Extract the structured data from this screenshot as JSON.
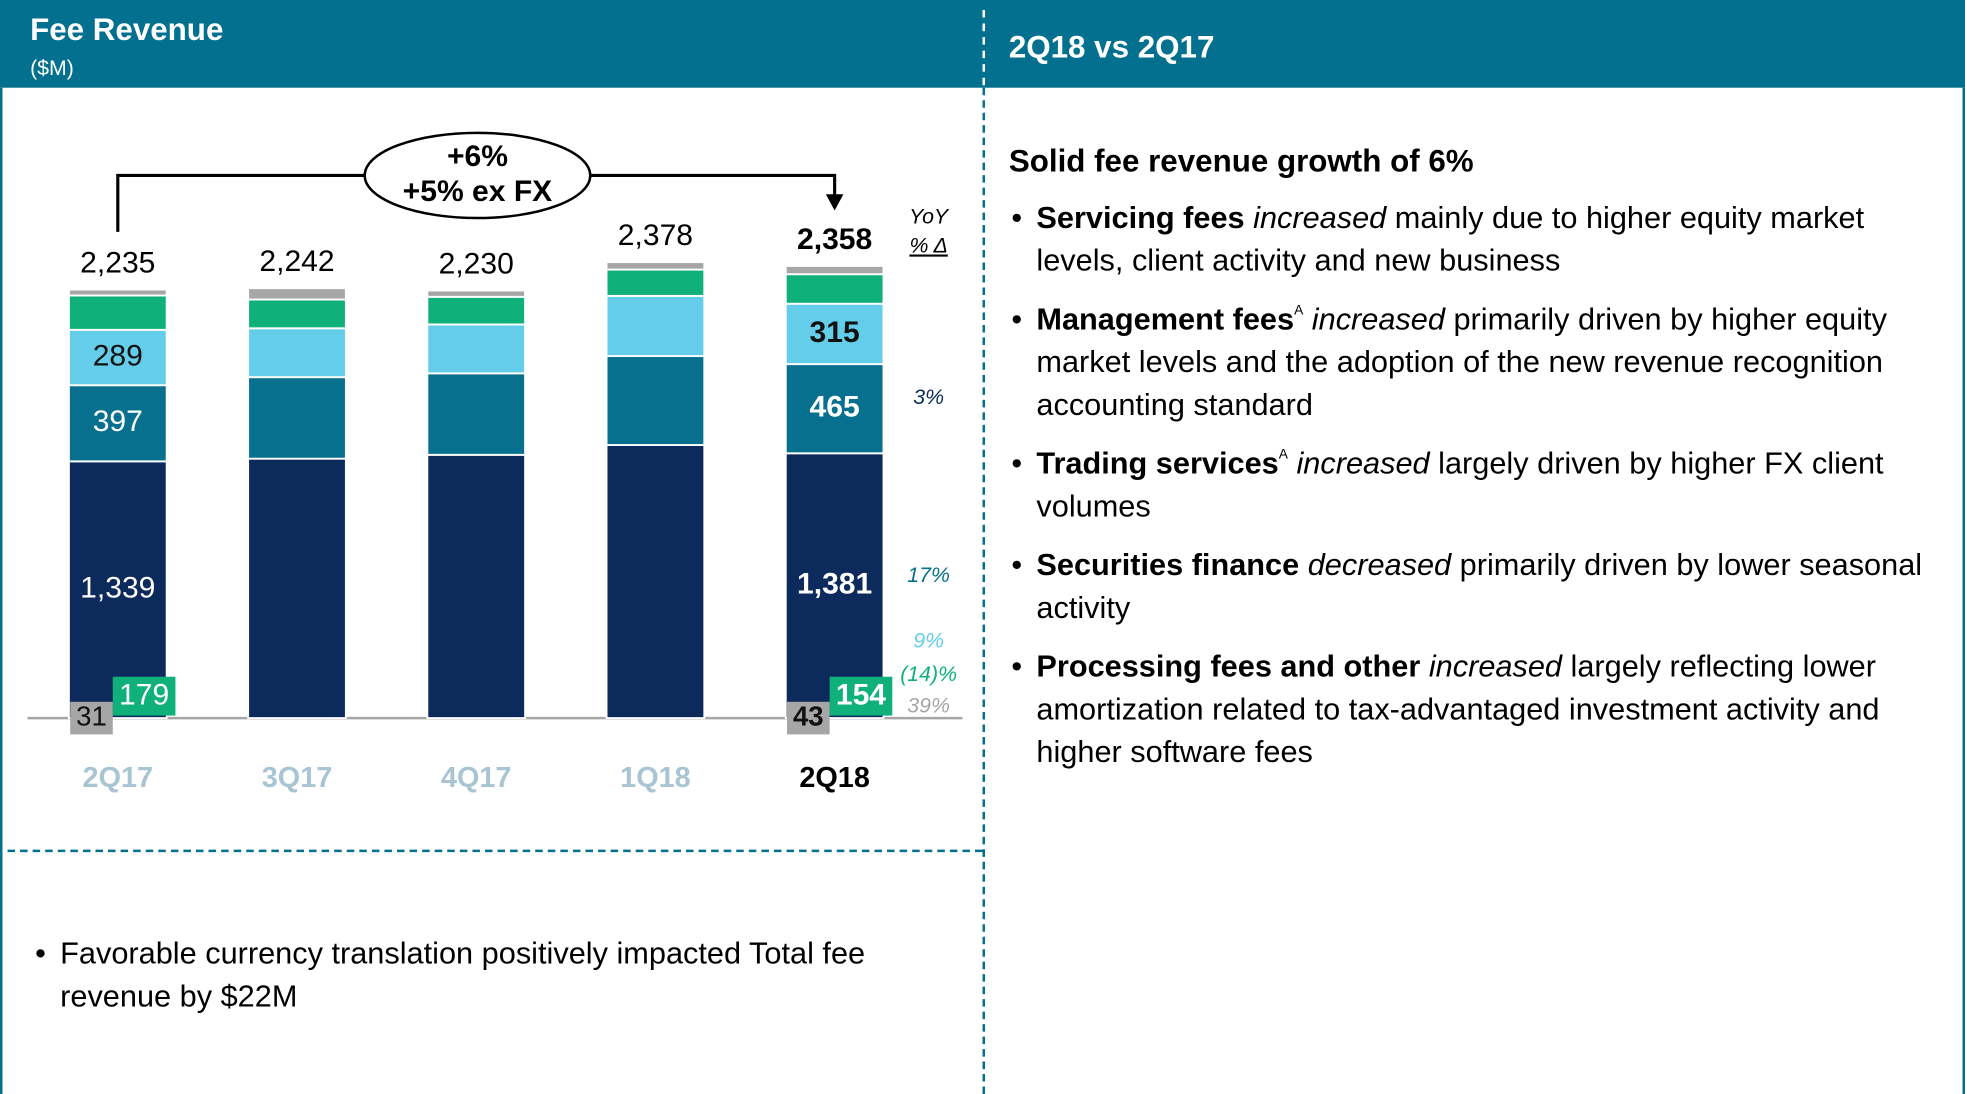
{
  "header": {
    "left_title": "Fee Revenue",
    "left_subtitle": "($M)",
    "right_title": "2Q18 vs 2Q17"
  },
  "chart_data": {
    "type": "bar",
    "stacked": true,
    "categories": [
      "2Q17",
      "3Q17",
      "4Q17",
      "1Q18",
      "2Q18"
    ],
    "series": [
      {
        "color": "#0c2a5b",
        "values": [
          1339,
          1353,
          1373,
          1424,
          1381
        ],
        "value_labels": [
          "1,339",
          null,
          null,
          null,
          "1,381"
        ],
        "yoy": "3%"
      },
      {
        "color": "#08708f",
        "values": [
          397,
          425,
          425,
          464,
          465
        ],
        "value_labels": [
          "397",
          null,
          null,
          null,
          "465"
        ],
        "yoy": "17%"
      },
      {
        "color": "#64cdea",
        "values": [
          289,
          255,
          255,
          314,
          315
        ],
        "value_labels": [
          "289",
          null,
          null,
          null,
          "315"
        ],
        "yoy": "9%"
      },
      {
        "color": "#10b07a",
        "values": [
          179,
          150,
          144,
          137,
          154
        ],
        "value_labels": [
          "179",
          null,
          null,
          null,
          "154"
        ],
        "yoy": "(14)%"
      },
      {
        "color": "#a6a6a6",
        "values": [
          31,
          59,
          33,
          39,
          43
        ],
        "value_labels": [
          "31",
          null,
          null,
          null,
          "43"
        ],
        "yoy": "39%"
      }
    ],
    "totals": [
      2235,
      2242,
      2230,
      2378,
      2358
    ],
    "total_labels": [
      "2,235",
      "2,242",
      "2,230",
      "2,378",
      "2,358"
    ],
    "yoy_header": [
      "YoY",
      "% Δ"
    ],
    "annotation": [
      "+6%",
      "+5% ex FX"
    ]
  },
  "right_panel": {
    "title": "Solid fee revenue growth of 6%",
    "bullets": [
      {
        "runs": [
          {
            "text": "Servicing fees",
            "style": "bold"
          },
          {
            "text": " increased",
            "style": "italic"
          },
          {
            "text": " mainly due to higher equity market levels, client activity and new business",
            "style": "normal"
          }
        ]
      },
      {
        "runs": [
          {
            "text": "Management fees",
            "style": "bold"
          },
          {
            "text": "A",
            "style": "sup"
          },
          {
            "text": " increased",
            "style": "italic"
          },
          {
            "text": " primarily driven by higher equity market levels and the adoption of the new revenue recognition accounting standard",
            "style": "normal"
          }
        ]
      },
      {
        "runs": [
          {
            "text": "Trading services",
            "style": "bold"
          },
          {
            "text": "A",
            "style": "sup"
          },
          {
            "text": " increased",
            "style": "italic"
          },
          {
            "text": " largely driven by higher FX client volumes",
            "style": "normal"
          }
        ]
      },
      {
        "runs": [
          {
            "text": "Securities finance",
            "style": "bold"
          },
          {
            "text": " decreased",
            "style": "italic"
          },
          {
            "text": " primarily driven by lower seasonal activity",
            "style": "normal"
          }
        ]
      },
      {
        "runs": [
          {
            "text": "Processing fees and other",
            "style": "bold"
          },
          {
            "text": " increased",
            "style": "italic"
          },
          {
            "text": " largely reflecting lower amortization related to tax-advantaged investment activity and higher software fees",
            "style": "normal"
          }
        ]
      }
    ]
  },
  "left_note": "Favorable currency translation positively impacted Total fee revenue by $22M"
}
